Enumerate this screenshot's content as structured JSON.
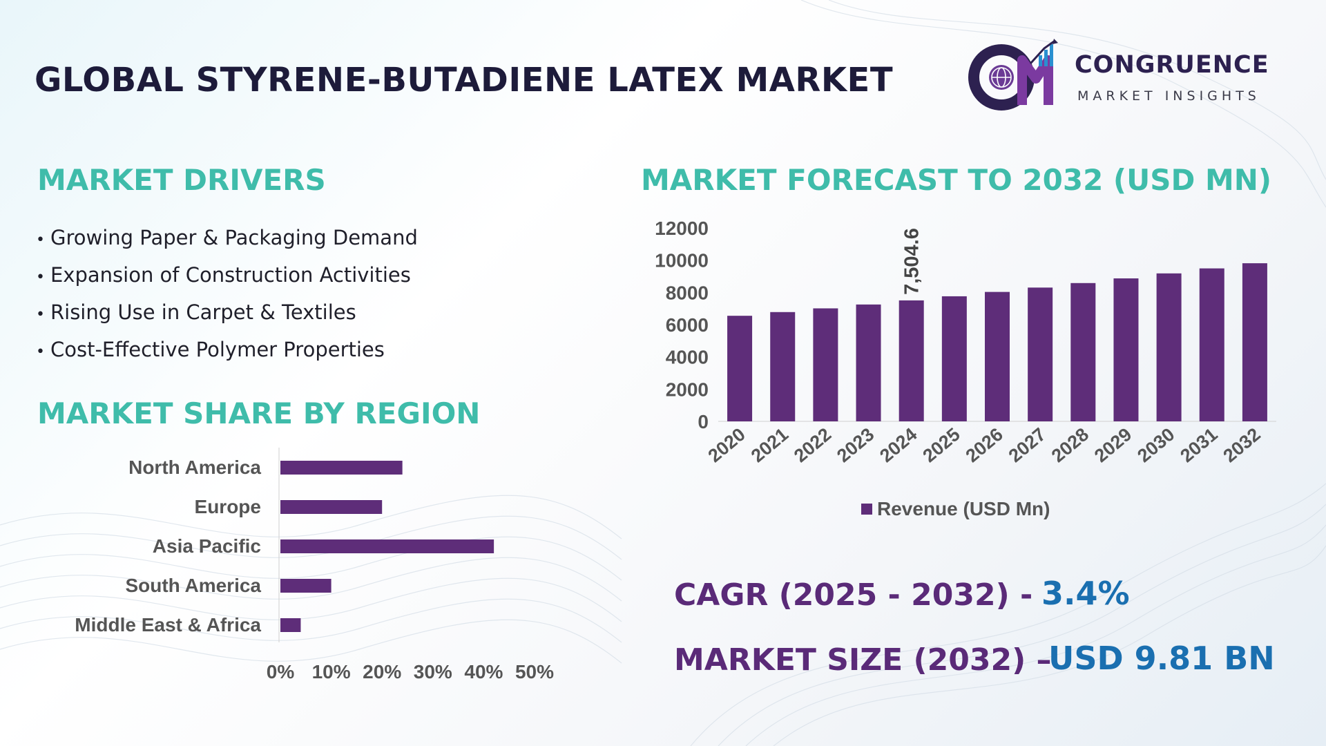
{
  "header": {
    "title": "GLOBAL STYRENE-BUTADIENE LATEX MARKET",
    "logo_name": "CONGRUENCE",
    "logo_tagline": "MARKET INSIGHTS"
  },
  "drivers": {
    "title": "MARKET DRIVERS",
    "items": [
      "Growing Paper & Packaging Demand",
      "Expansion of Construction Activities",
      "Rising Use in Carpet & Textiles",
      "Cost-Effective Polymer Properties"
    ]
  },
  "stats": {
    "cagr_label": "CAGR (2025 - 2032) -",
    "cagr_value": "3.4%",
    "size_label": "MARKET SIZE (2032) –",
    "size_value": "USD 9.81 BN"
  },
  "colors": {
    "bar": "#5e2d79",
    "teal_heading": "#3fbcaa",
    "stat_label": "#5a2a78",
    "stat_value": "#1a6fb0",
    "title": "#1d1b3a"
  },
  "chart_data": [
    {
      "type": "bar",
      "orientation": "horizontal",
      "title": "MARKET SHARE BY REGION",
      "categories": [
        "North America",
        "Europe",
        "Asia Pacific",
        "South America",
        "Middle East & Africa"
      ],
      "values": [
        24,
        20,
        42,
        10,
        4
      ],
      "xlim": [
        0,
        50
      ],
      "xticks": [
        "0%",
        "10%",
        "20%",
        "30%",
        "40%",
        "50%"
      ],
      "grid": false,
      "legend": "none"
    },
    {
      "type": "bar",
      "title": "MARKET FORECAST TO 2032 (USD MN)",
      "categories": [
        "2020",
        "2021",
        "2022",
        "2023",
        "2024",
        "2025",
        "2026",
        "2027",
        "2028",
        "2029",
        "2030",
        "2031",
        "2032"
      ],
      "series": [
        {
          "name": "Revenue (USD Mn)",
          "values": [
            6550,
            6780,
            7010,
            7250,
            7504.6,
            7760,
            8030,
            8300,
            8580,
            8870,
            9180,
            9490,
            9810
          ]
        }
      ],
      "data_labels": [
        {
          "category": "2024",
          "text": "7,504.6"
        }
      ],
      "ylim": [
        0,
        12000
      ],
      "yticks": [
        "12000",
        "10000",
        "8000",
        "6000",
        "4000",
        "2000",
        "0"
      ],
      "grid": false,
      "legend": "bottom"
    }
  ]
}
